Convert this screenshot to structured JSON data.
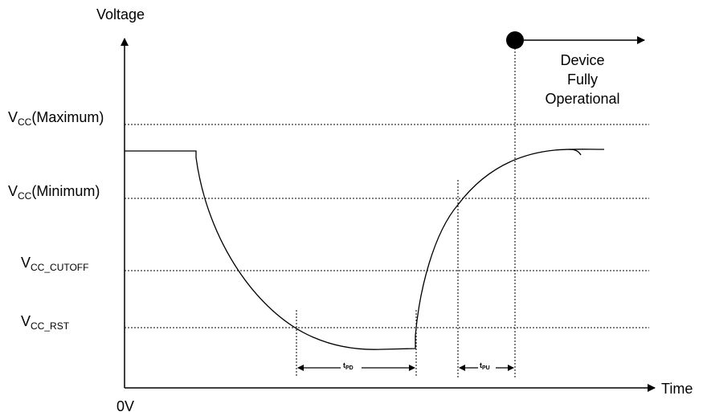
{
  "axes": {
    "y_label": "Voltage",
    "x_label": "Time",
    "origin_label": "0V"
  },
  "levels": [
    {
      "main": "V",
      "sub": "CC",
      "suffix": "(Maximum)"
    },
    {
      "main": "V",
      "sub": "CC",
      "suffix": "(Minimum)"
    },
    {
      "main": "V",
      "sub": "CC_CUTOFF",
      "suffix": ""
    },
    {
      "main": "V",
      "sub": "CC_RST",
      "suffix": ""
    }
  ],
  "intervals": {
    "power_down": {
      "main": "t",
      "sub": "PD"
    },
    "power_up": {
      "main": "t",
      "sub": "PU"
    }
  },
  "status": {
    "line1": "Device",
    "line2": "Fully",
    "line3": "Operational"
  }
}
